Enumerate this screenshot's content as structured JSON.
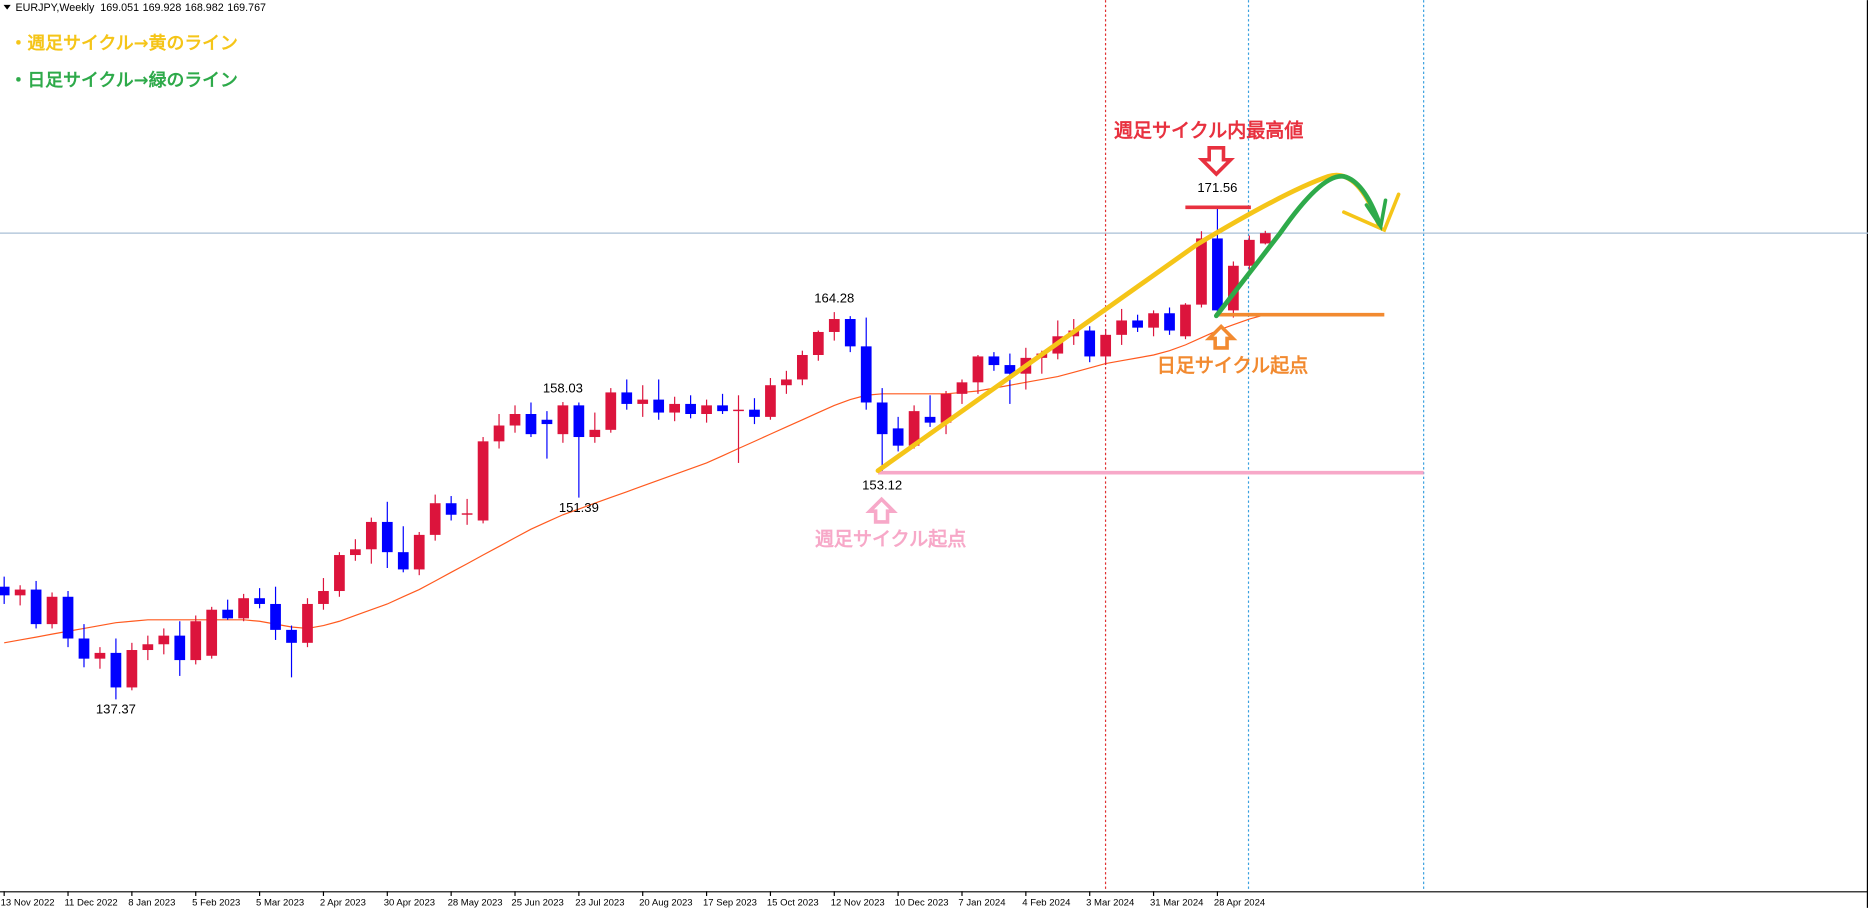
{
  "chart_data": {
    "type": "candlestick",
    "symbol": "EURJPY,Weekly",
    "up_color": "#dc143c",
    "down_color": "#0000ff",
    "ylim": [
      124.04,
      185.96
    ],
    "categories": [
      "13 Nov 2022",
      null,
      null,
      null,
      "11 Dec 2022",
      null,
      null,
      null,
      "8 Jan 2023",
      null,
      null,
      null,
      "5 Feb 2023",
      null,
      null,
      null,
      "5 Mar 2023",
      null,
      null,
      null,
      "2 Apr 2023",
      null,
      null,
      null,
      "30 Apr 2023",
      null,
      null,
      null,
      "28 May 2023",
      null,
      null,
      null,
      "25 Jun 2023",
      null,
      null,
      null,
      "23 Jul 2023",
      null,
      null,
      null,
      "20 Aug 2023",
      null,
      null,
      null,
      "17 Sep 2023",
      null,
      null,
      null,
      "15 Oct 2023",
      null,
      null,
      null,
      "12 Nov 2023",
      null,
      null,
      null,
      "10 Dec 2023",
      null,
      null,
      null,
      "7 Jan 2024",
      null,
      null,
      null,
      "4 Feb 2024",
      null,
      null,
      null,
      "3 Mar 2024",
      null,
      null,
      null,
      "31 Mar 2024",
      null,
      null,
      null,
      "28 Apr 2024",
      null,
      null,
      null
    ],
    "candles": [
      [
        145.2,
        145.9,
        144.0,
        144.6
      ],
      [
        144.6,
        145.3,
        143.9,
        145.0
      ],
      [
        145.0,
        145.6,
        142.3,
        142.6
      ],
      [
        142.6,
        144.8,
        142.3,
        144.5
      ],
      [
        144.5,
        144.9,
        141.0,
        141.6
      ],
      [
        141.6,
        142.6,
        139.6,
        140.2
      ],
      [
        140.2,
        141.0,
        139.5,
        140.6
      ],
      [
        140.6,
        141.6,
        137.37,
        138.2
      ],
      [
        138.2,
        141.3,
        138.0,
        140.8
      ],
      [
        140.8,
        141.8,
        140.1,
        141.2
      ],
      [
        141.2,
        142.3,
        140.5,
        141.8
      ],
      [
        141.8,
        142.8,
        139.0,
        140.1
      ],
      [
        140.1,
        143.2,
        139.8,
        142.8
      ],
      [
        140.4,
        143.8,
        140.2,
        143.6
      ],
      [
        143.6,
        144.3,
        142.9,
        143.0
      ],
      [
        143.0,
        144.7,
        142.8,
        144.4
      ],
      [
        144.4,
        145.1,
        143.7,
        144.0
      ],
      [
        144.0,
        145.2,
        141.5,
        142.2
      ],
      [
        142.2,
        142.5,
        138.9,
        141.3
      ],
      [
        141.3,
        144.4,
        141.0,
        144.0
      ],
      [
        144.0,
        145.8,
        143.6,
        144.9
      ],
      [
        144.9,
        147.6,
        144.5,
        147.4
      ],
      [
        147.4,
        148.5,
        147.0,
        147.8
      ],
      [
        147.8,
        150.0,
        146.8,
        149.7
      ],
      [
        149.7,
        151.1,
        146.5,
        147.6
      ],
      [
        147.6,
        149.4,
        146.2,
        146.4
      ],
      [
        146.4,
        149.0,
        146.0,
        148.8
      ],
      [
        148.8,
        151.6,
        148.4,
        151.0
      ],
      [
        151.0,
        151.5,
        149.8,
        150.2
      ],
      [
        150.2,
        151.3,
        149.5,
        150.3
      ],
      [
        149.8,
        155.6,
        149.6,
        155.3
      ],
      [
        155.3,
        157.2,
        154.8,
        156.4
      ],
      [
        156.4,
        157.8,
        155.9,
        157.2
      ],
      [
        157.2,
        158.0,
        155.6,
        155.8
      ],
      [
        156.8,
        157.4,
        154.1,
        156.5
      ],
      [
        155.8,
        158.03,
        155.2,
        157.8
      ],
      [
        157.8,
        158.0,
        151.39,
        155.6
      ],
      [
        155.6,
        157.3,
        155.2,
        156.1
      ],
      [
        156.1,
        159.0,
        155.9,
        158.7
      ],
      [
        158.7,
        159.6,
        157.5,
        157.9
      ],
      [
        157.9,
        159.2,
        157.0,
        158.2
      ],
      [
        158.2,
        159.6,
        156.8,
        157.3
      ],
      [
        157.3,
        158.4,
        156.7,
        157.9
      ],
      [
        157.9,
        158.5,
        156.9,
        157.2
      ],
      [
        157.2,
        158.2,
        156.6,
        157.8
      ],
      [
        157.8,
        158.6,
        157.2,
        157.4
      ],
      [
        157.4,
        158.5,
        153.8,
        157.5
      ],
      [
        157.5,
        158.3,
        156.5,
        157.0
      ],
      [
        157.0,
        159.7,
        156.8,
        159.2
      ],
      [
        159.2,
        160.2,
        158.6,
        159.6
      ],
      [
        159.6,
        161.6,
        159.2,
        161.3
      ],
      [
        161.3,
        163.0,
        160.9,
        162.9
      ],
      [
        162.9,
        164.28,
        162.3,
        163.8
      ],
      [
        163.8,
        164.0,
        161.5,
        161.9
      ],
      [
        161.9,
        163.9,
        157.5,
        158.0
      ],
      [
        158.0,
        159.0,
        153.12,
        155.8
      ],
      [
        156.2,
        157.0,
        154.6,
        155.0
      ],
      [
        155.0,
        157.8,
        154.8,
        157.4
      ],
      [
        157.0,
        158.5,
        156.3,
        156.6
      ],
      [
        156.6,
        158.8,
        155.8,
        158.6
      ],
      [
        158.6,
        159.6,
        157.9,
        159.4
      ],
      [
        159.4,
        161.3,
        158.6,
        161.2
      ],
      [
        161.2,
        161.5,
        160.2,
        160.6
      ],
      [
        160.6,
        161.4,
        157.9,
        160.0
      ],
      [
        160.0,
        161.8,
        158.9,
        161.1
      ],
      [
        161.1,
        161.6,
        160.0,
        161.4
      ],
      [
        161.4,
        163.7,
        161.0,
        162.6
      ],
      [
        162.6,
        163.8,
        162.0,
        163.0
      ],
      [
        163.0,
        163.3,
        160.8,
        161.2
      ],
      [
        161.2,
        163.1,
        160.6,
        162.7
      ],
      [
        162.7,
        164.5,
        162.0,
        163.7
      ],
      [
        163.7,
        164.1,
        162.9,
        163.2
      ],
      [
        163.2,
        164.4,
        162.6,
        164.2
      ],
      [
        164.2,
        164.6,
        162.7,
        163.0
      ],
      [
        162.6,
        164.9,
        162.4,
        164.8
      ],
      [
        164.8,
        169.9,
        164.6,
        169.4
      ],
      [
        169.4,
        171.56,
        164.1,
        164.4
      ],
      [
        164.4,
        167.8,
        163.9,
        167.5
      ],
      [
        167.5,
        169.6,
        167.1,
        169.3
      ],
      [
        169.051,
        169.928,
        168.982,
        169.767
      ]
    ],
    "ma": {
      "color": "#ff5a1f",
      "values": [
        141.3,
        141.5,
        141.7,
        141.9,
        142.1,
        142.3,
        142.5,
        142.7,
        142.8,
        142.9,
        142.9,
        142.9,
        142.9,
        142.9,
        142.9,
        142.9,
        142.8,
        142.6,
        142.4,
        142.3,
        142.5,
        142.8,
        143.2,
        143.6,
        144.0,
        144.5,
        145.0,
        145.6,
        146.2,
        146.8,
        147.4,
        148.0,
        148.6,
        149.2,
        149.7,
        150.2,
        150.6,
        151.0,
        151.4,
        151.8,
        152.2,
        152.6,
        153.0,
        153.4,
        153.8,
        154.3,
        154.8,
        155.3,
        155.8,
        156.3,
        156.8,
        157.3,
        157.8,
        158.2,
        158.5,
        158.6,
        158.6,
        158.6,
        158.6,
        158.6,
        158.7,
        158.8,
        159.0,
        159.2,
        159.4,
        159.6,
        159.8,
        160.1,
        160.4,
        160.7,
        160.9,
        161.1,
        161.3,
        161.6,
        162.0,
        162.5,
        163.0,
        163.4,
        163.8,
        164.1
      ]
    },
    "annotations": [
      {
        "text": "・週足サイクル→黄のライン",
        "color": "#f5c518"
      },
      {
        "text": "・日足サイクル→緑のライン",
        "color": "#2eaa4a"
      },
      {
        "text": "週足サイクル内最高値",
        "color": "#e8313f"
      },
      {
        "text": "日足サイクル起点",
        "color": "#f28a30"
      },
      {
        "text": "週足サイクル起点",
        "color": "#f7a8c8"
      }
    ]
  }
}
